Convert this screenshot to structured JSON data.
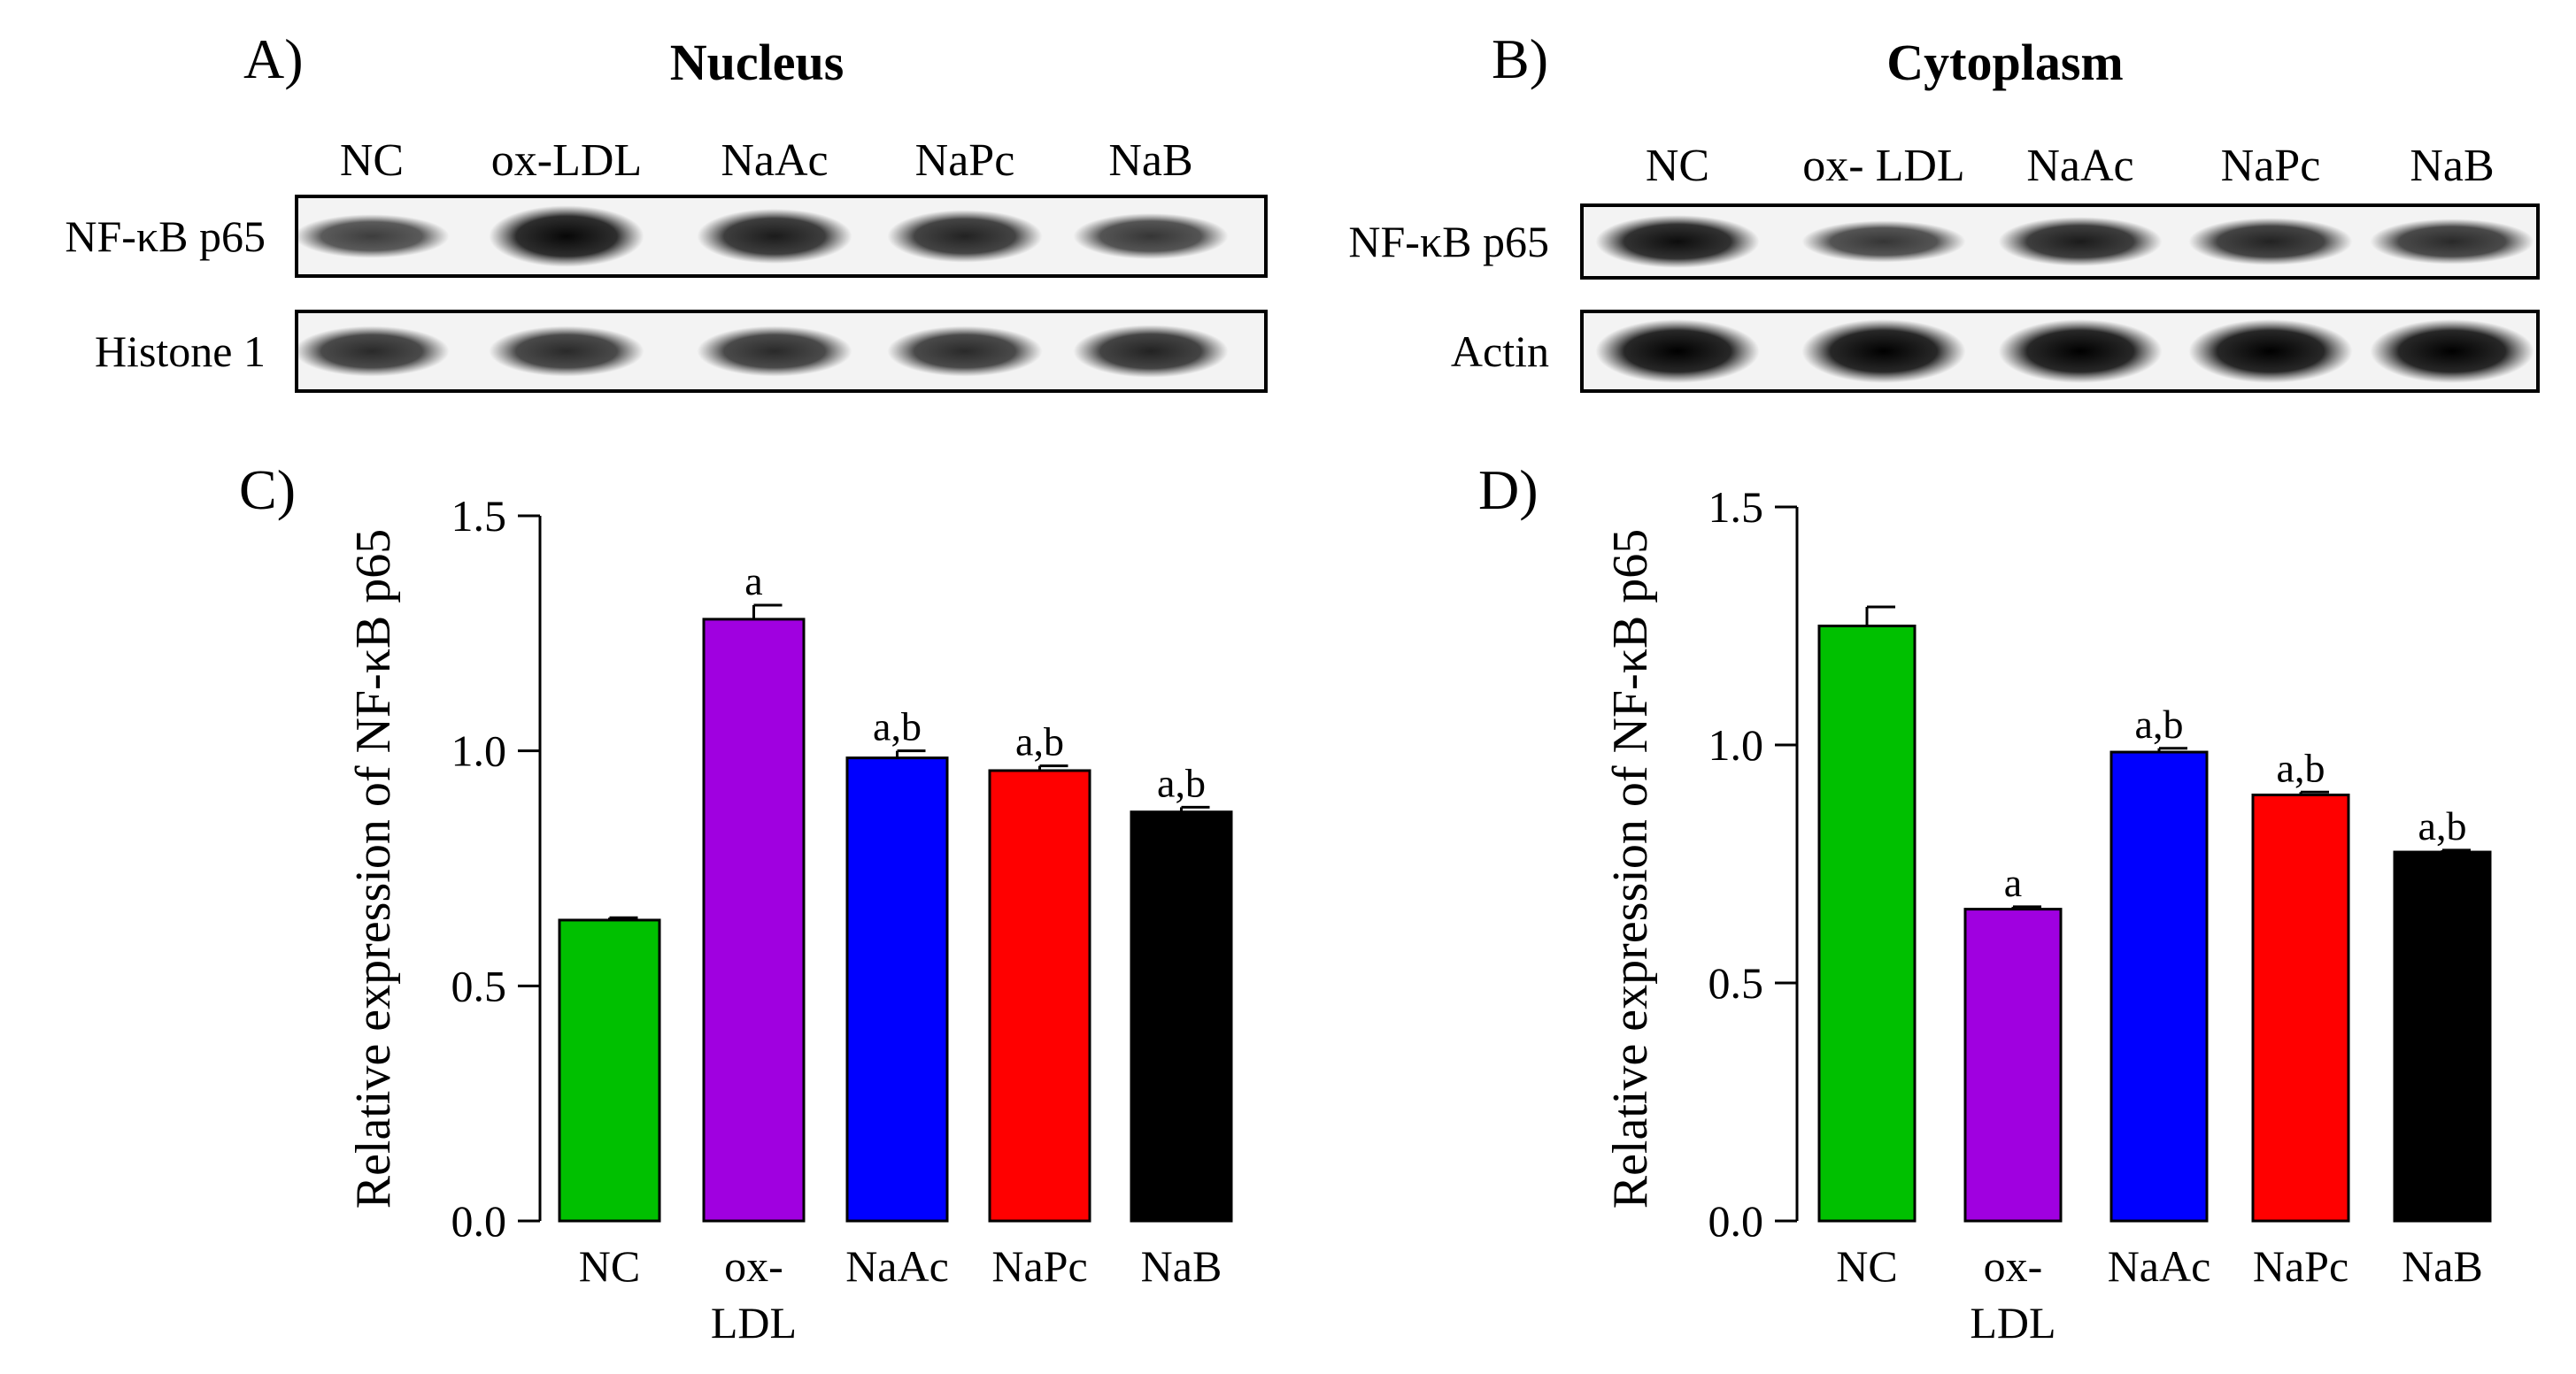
{
  "blots": [
    {
      "letter": "A)",
      "title": "Nucleus",
      "lanes": [
        "NC",
        "ox-LDL",
        "NaAc",
        "NaPc",
        "NaB"
      ],
      "rows": [
        {
          "label": "NF-κB p65",
          "intensity": [
            0.55,
            0.95,
            0.8,
            0.75,
            0.6
          ]
        },
        {
          "label": "Histone 1",
          "intensity": [
            0.7,
            0.7,
            0.7,
            0.7,
            0.75
          ]
        }
      ]
    },
    {
      "letter": "B)",
      "title": "Cytoplasm",
      "lanes": [
        "NC",
        "ox- LDL",
        "NaAc",
        "NaPc",
        "NaB"
      ],
      "rows": [
        {
          "label": "NF-κB p65",
          "intensity": [
            0.9,
            0.6,
            0.8,
            0.75,
            0.7
          ]
        },
        {
          "label": "Actin",
          "intensity": [
            1.0,
            1.0,
            1.0,
            1.0,
            1.0
          ]
        }
      ]
    }
  ],
  "chart_data": [
    {
      "type": "bar",
      "panel": "C)",
      "categories": [
        [
          "NC"
        ],
        [
          "ox-",
          "LDL"
        ],
        [
          "NaAc"
        ],
        [
          "NaPc"
        ],
        [
          "NaB"
        ]
      ],
      "values": [
        0.64,
        1.28,
        0.985,
        0.958,
        0.87
      ],
      "errors": [
        0.005,
        0.03,
        0.015,
        0.01,
        0.01
      ],
      "significance": [
        "",
        "a",
        "a,b",
        "a,b",
        "a,b"
      ],
      "colors": [
        "#00c000",
        "#a000e0",
        "#0000ff",
        "#ff0000",
        "#000000"
      ],
      "ylabel": "Relative expression of  NF-κB p65",
      "yticks": [
        "0.0",
        "0.5",
        "1.0",
        "1.5"
      ],
      "ylim": [
        0,
        1.5
      ]
    },
    {
      "type": "bar",
      "panel": "D)",
      "categories": [
        [
          "NC"
        ],
        [
          "ox-",
          "LDL"
        ],
        [
          "NaAc"
        ],
        [
          "NaPc"
        ],
        [
          "NaB"
        ]
      ],
      "values": [
        1.25,
        0.655,
        0.985,
        0.895,
        0.775
      ],
      "errors": [
        0.04,
        0.005,
        0.008,
        0.006,
        0.004
      ],
      "significance": [
        "",
        "a",
        "a,b",
        "a,b",
        "a,b"
      ],
      "colors": [
        "#00c000",
        "#a000e0",
        "#0000ff",
        "#ff0000",
        "#000000"
      ],
      "ylabel": "Relative expression of  NF-κB p65",
      "yticks": [
        "0.0",
        "0.5",
        "1.0",
        "1.5"
      ],
      "ylim": [
        0,
        1.5
      ]
    }
  ]
}
